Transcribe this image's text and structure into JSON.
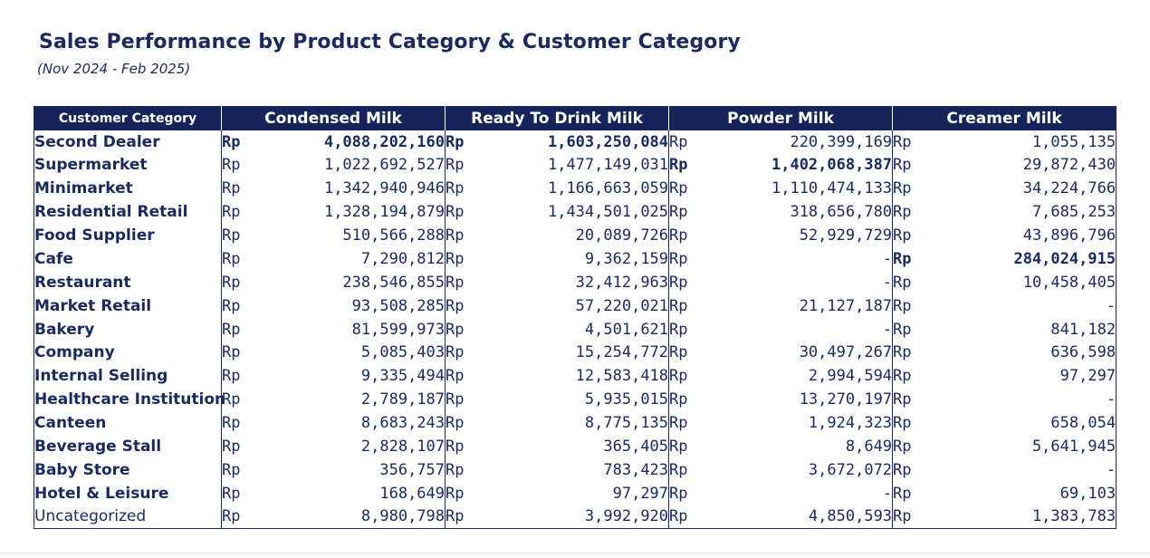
{
  "title": "Sales Performance by Product Category & Customer Category",
  "subtitle": "(Nov 2024 - Feb 2025)",
  "colors": {
    "header_bg": "#15245a",
    "text": "#1b2a5e"
  },
  "table": {
    "headers": [
      "Customer Category",
      "Condensed Milk",
      "Ready To Drink Milk",
      "Powder Milk",
      "Creamer Milk"
    ],
    "currency": "Rp",
    "rows": [
      {
        "name": "Second Dealer",
        "values": [
          "4,088,202,160",
          "1,603,250,084",
          "220,399,169",
          "1,055,135"
        ],
        "bold_cols": [
          0,
          1
        ]
      },
      {
        "name": "Supermarket",
        "values": [
          "1,022,692,527",
          "1,477,149,031",
          "1,402,068,387",
          "29,872,430"
        ],
        "bold_cols": [
          2
        ]
      },
      {
        "name": "Minimarket",
        "values": [
          "1,342,940,946",
          "1,166,663,059",
          "1,110,474,133",
          "34,224,766"
        ],
        "bold_cols": []
      },
      {
        "name": "Residential Retail",
        "values": [
          "1,328,194,879",
          "1,434,501,025",
          "318,656,780",
          "7,685,253"
        ],
        "bold_cols": []
      },
      {
        "name": "Food Supplier",
        "values": [
          "510,566,288",
          "20,089,726",
          "52,929,729",
          "43,896,796"
        ],
        "bold_cols": []
      },
      {
        "name": "Cafe",
        "values": [
          "7,290,812",
          "9,362,159",
          "-",
          "284,024,915"
        ],
        "bold_cols": [
          3
        ]
      },
      {
        "name": "Restaurant",
        "values": [
          "238,546,855",
          "32,412,963",
          "-",
          "10,458,405"
        ],
        "bold_cols": []
      },
      {
        "name": "Market Retail",
        "values": [
          "93,508,285",
          "57,220,021",
          "21,127,187",
          "-"
        ],
        "bold_cols": []
      },
      {
        "name": "Bakery",
        "values": [
          "81,599,973",
          "4,501,621",
          "-",
          "841,182"
        ],
        "bold_cols": []
      },
      {
        "name": "Company",
        "values": [
          "5,085,403",
          "15,254,772",
          "30,497,267",
          "636,598"
        ],
        "bold_cols": []
      },
      {
        "name": "Internal Selling",
        "values": [
          "9,335,494",
          "12,583,418",
          "2,994,594",
          "97,297"
        ],
        "bold_cols": []
      },
      {
        "name": "Healthcare Institution",
        "values": [
          "2,789,187",
          "5,935,015",
          "13,270,197",
          "-"
        ],
        "bold_cols": []
      },
      {
        "name": "Canteen",
        "values": [
          "8,683,243",
          "8,775,135",
          "1,924,323",
          "658,054"
        ],
        "bold_cols": []
      },
      {
        "name": "Beverage Stall",
        "values": [
          "2,828,107",
          "365,405",
          "8,649",
          "5,641,945"
        ],
        "bold_cols": []
      },
      {
        "name": "Baby Store",
        "values": [
          "356,757",
          "783,423",
          "3,672,072",
          "-"
        ],
        "bold_cols": []
      },
      {
        "name": "Hotel & Leisure",
        "values": [
          "168,649",
          "97,297",
          "-",
          "69,103"
        ],
        "bold_cols": []
      },
      {
        "name": "Uncategorized",
        "values": [
          "8,980,798",
          "3,992,920",
          "4,850,593",
          "1,383,783"
        ],
        "bold_cols": [],
        "name_normal": true
      }
    ]
  }
}
